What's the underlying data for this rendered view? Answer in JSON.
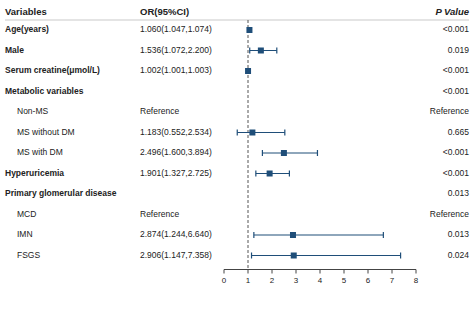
{
  "chart_data": {
    "type": "forest",
    "column_headers": [
      "Variables",
      "OR(95%CI)",
      "P Value"
    ],
    "categories": [
      "Age(years)",
      "Male",
      "Serum creatine(μmol/L)",
      "Metabolic variables",
      "Non-MS",
      "MS without DM",
      "MS with DM",
      "Hyperuricemia",
      "Primary glomerular disease",
      "MCD",
      "IMN",
      "FSGS"
    ],
    "indent": [
      0,
      0,
      0,
      0,
      1,
      1,
      1,
      0,
      0,
      1,
      1,
      1
    ],
    "values": [
      1.06,
      1.536,
      1.002,
      null,
      null,
      1.183,
      2.496,
      1.901,
      null,
      null,
      2.874,
      2.906
    ],
    "ci_lo": [
      1.047,
      1.072,
      1.001,
      null,
      null,
      0.552,
      1.6,
      1.327,
      null,
      null,
      1.244,
      1.147
    ],
    "ci_hi": [
      1.074,
      2.2,
      1.003,
      null,
      null,
      2.534,
      3.894,
      2.725,
      null,
      null,
      6.64,
      7.358
    ],
    "value_labels": [
      "1.060(1.047,1.074)",
      "1.536(1.072,2.200)",
      "1.002(1.001,1.003)",
      null,
      "Reference",
      "1.183(0.552,2.534)",
      "2.496(1.600,3.894)",
      "1.901(1.327,2.725)",
      null,
      "Reference",
      "2.874(1.244,6.640)",
      "2.906(1.147,7.358)"
    ],
    "p_values": [
      "<0.001",
      "0.019",
      "<0.001",
      "<0.001",
      "Reference",
      "0.665",
      "<0.001",
      "<0.001",
      "0.013",
      "Reference",
      "0.013",
      "0.024"
    ],
    "xlim": [
      0,
      8
    ],
    "xticks": [
      0,
      1,
      2,
      3,
      4,
      5,
      6,
      7,
      8
    ],
    "ref_line": 1.0
  }
}
